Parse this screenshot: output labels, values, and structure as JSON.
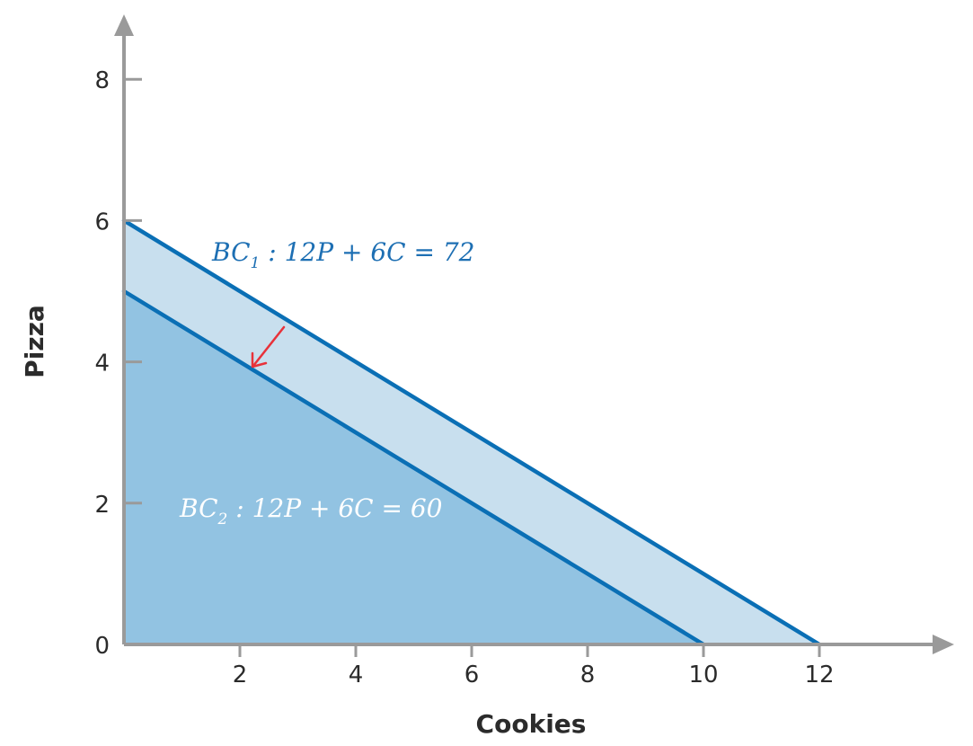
{
  "chart_data": {
    "type": "area",
    "title": "",
    "xlabel": "Cookies",
    "ylabel": "Pizza",
    "xlim": [
      0,
      14
    ],
    "ylim": [
      0,
      9
    ],
    "x_ticks": [
      2,
      4,
      6,
      8,
      10,
      12
    ],
    "y_ticks": [
      0,
      2,
      4,
      6,
      8
    ],
    "grid": false,
    "series": [
      {
        "name": "BC1",
        "label": "BC",
        "label_subscript": "1",
        "equation": ": 12P + 6C = 72",
        "x": [
          0,
          12
        ],
        "y": [
          6,
          0
        ]
      },
      {
        "name": "BC2",
        "label": "BC",
        "label_subscript": "2",
        "equation": ": 12P + 6C = 60",
        "x": [
          0,
          10
        ],
        "y": [
          5,
          0
        ]
      }
    ],
    "annotations": [
      {
        "type": "arrow",
        "meaning": "shift from BC1 toward BC2",
        "color": "#e8323a"
      }
    ],
    "colors": {
      "line": "#0a6fb5",
      "fill_bc1_band": "#c8dfee",
      "fill_bc2_area": "#92c3e2",
      "axis": "#9a9a9a",
      "arrow": "#e8323a",
      "bc1_label": "#1d6fb3",
      "bc2_label": "#ffffff"
    }
  }
}
